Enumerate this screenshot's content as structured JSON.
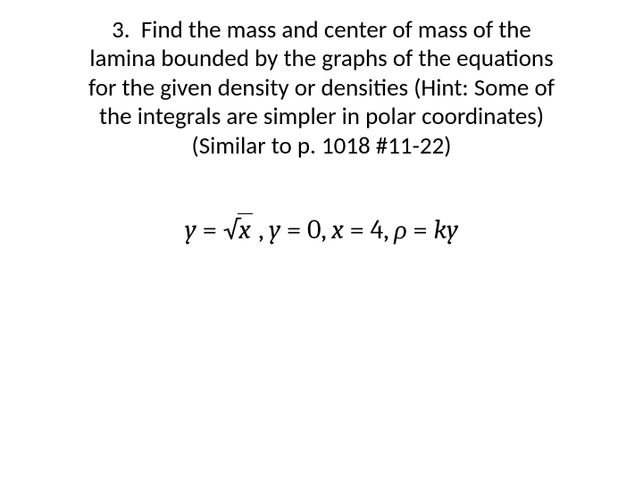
{
  "problem": {
    "number": "3.",
    "line1": "Find the mass and center of mass of the",
    "line2": "lamina bounded by the graphs of the equations",
    "line3": "for the given density or densities (Hint: Some of",
    "line4": "the integrals are simpler in polar coordinates)",
    "line5": "(Similar to p. 1018 #11-22)"
  },
  "equation": {
    "y_eq": "y",
    "equals1": " = ",
    "sqrt_arg": "x",
    "sep1": " , ",
    "y2": "y",
    "equals2": " = ",
    "zero": "0",
    "sep2": ", ",
    "x": "x",
    "equals3": " = ",
    "four": "4",
    "sep3": ", ",
    "rho": "ρ",
    "equals4": " = ",
    "ky": "ky"
  },
  "style": {
    "background_color": "#ffffff",
    "text_color": "#000000",
    "body_fontsize": 27,
    "equation_fontsize": 30,
    "body_font": "Calibri",
    "equation_font": "Cambria Math"
  }
}
